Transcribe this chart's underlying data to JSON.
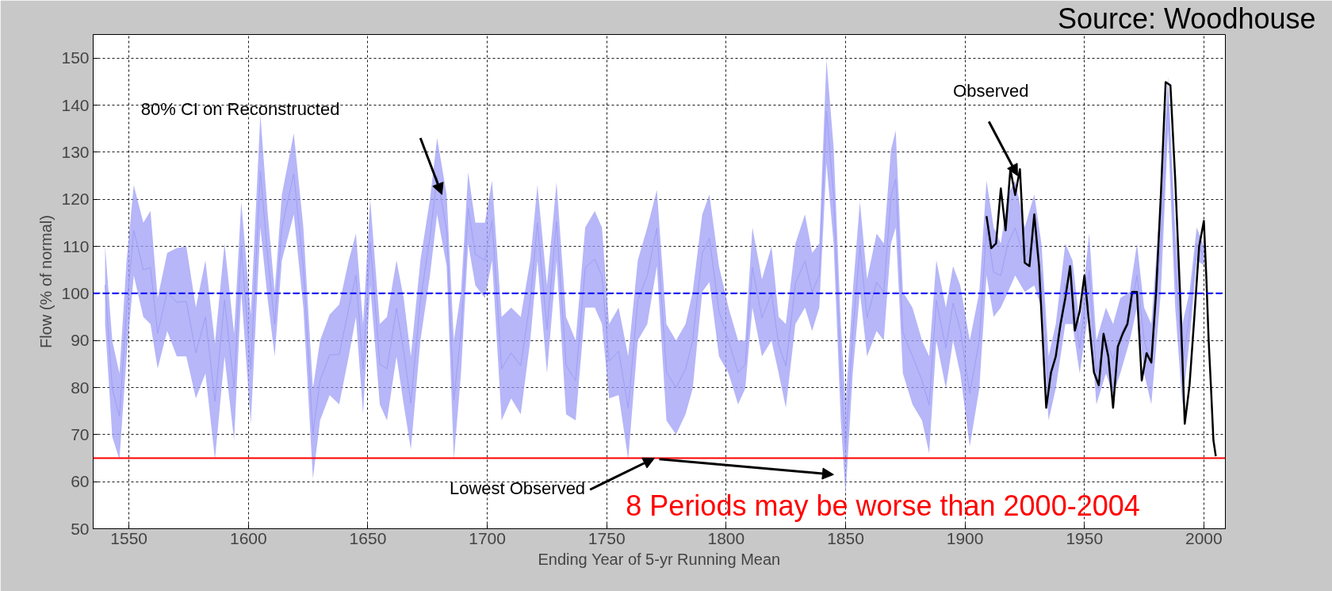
{
  "chart_data": {
    "type": "line",
    "xlabel": "Ending Year of 5-yr Running Mean",
    "ylabel": "Flow (% of normal)",
    "xlim": [
      1535,
      2009
    ],
    "ylim": [
      50,
      155
    ],
    "xticks": [
      1550,
      1600,
      1650,
      1700,
      1750,
      1800,
      1850,
      1900,
      1950,
      2000
    ],
    "yticks": [
      50,
      60,
      70,
      80,
      90,
      100,
      110,
      120,
      130,
      140,
      150
    ],
    "grid": true,
    "series": [
      {
        "color": "#9e9ef6",
        "values": [
          101.75,
          79.75,
          73.85,
          96.8,
          113.4,
          105,
          105.5,
          91.5,
          100.3,
          98.1,
          98.3,
          87.35,
          95,
          77.05,
          98.6,
          80.1,
          109.9,
          83.9,
          126,
          108.25,
          93.45,
          114,
          125.4,
          105.5,
          70.2,
          81.5,
          86.95,
          87,
          96.8,
          103.85,
          83.9,
          110.85,
          84.95,
          84,
          96.8,
          87.7,
          76.7,
          98.5,
          111.9,
          124.9,
          113.4,
          77.35,
          91.65,
          118.15,
          108.35,
          107,
          115.5,
          84,
          87.35,
          84.65,
          98.5,
          115,
          92.35,
          115.3,
          84.65,
          81.5,
          105.5,
          107.25,
          103.75,
          85.6,
          87.7,
          75.65,
          98.5,
          103.75,
          113.9,
          83.25,
          80,
          83.9,
          90.05,
          108.55,
          111.7,
          96.2,
          90,
          83.2,
          84.9,
          105.5,
          94.8,
          100,
          89,
          84.6,
          102.05,
          106.9,
          100.3,
          103.8,
          138.7,
          120.8,
          83.25,
          66.8,
          91.65,
          109.9,
          94.8,
          102.35,
          100.3,
          120.55,
          124.3,
          91.65,
          86.7,
          81.5,
          76.3,
          98.5,
          88.4,
          97.9,
          92.35,
          78.75,
          90.05,
          113.9,
          104.5,
          103.8,
          110.65,
          113.9,
          107.15,
          111.35,
          103.8,
          79.8,
          86.65,
          102.05,
          100.25,
          88.25,
          104.85,
          83.2,
          90,
          85.95,
          91,
          95.15,
          103.8,
          90,
          84.95,
          110.65,
          140.3,
          105.5,
          84.95,
          95.15,
          110.5,
          108
        ],
        "x": [
          1540,
          1543,
          1546,
          1549,
          1552,
          1556,
          1559,
          1562,
          1566,
          1570,
          1574,
          1578,
          1582,
          1586,
          1590,
          1594,
          1597,
          1601,
          1605,
          1608,
          1611,
          1614,
          1619,
          1623,
          1627,
          1630,
          1634,
          1638,
          1642,
          1645,
          1648,
          1651,
          1655,
          1658,
          1662,
          1665,
          1668,
          1672,
          1676,
          1679,
          1683,
          1686,
          1689,
          1692,
          1695,
          1699,
          1702,
          1706,
          1710,
          1714,
          1718,
          1721,
          1725,
          1729,
          1733,
          1737,
          1741,
          1745,
          1748,
          1751,
          1755,
          1759,
          1763,
          1767,
          1771,
          1775,
          1779,
          1783,
          1786,
          1790,
          1793,
          1797,
          1801,
          1805,
          1808,
          1811,
          1815,
          1819,
          1822,
          1825,
          1829,
          1833,
          1836,
          1839,
          1842,
          1845,
          1848,
          1850,
          1853,
          1856,
          1859,
          1863,
          1866,
          1869,
          1871,
          1874,
          1878,
          1882,
          1885,
          1888,
          1892,
          1895,
          1898,
          1902,
          1906,
          1909,
          1912,
          1915,
          1918,
          1921,
          1925,
          1929,
          1932,
          1935,
          1938,
          1942,
          1945,
          1948,
          1952,
          1955,
          1959,
          1962,
          1965,
          1969,
          1972,
          1975,
          1978,
          1982,
          1985,
          1988,
          1991,
          1994,
          1997,
          2000
        ],
        "upper": [
          110,
          90,
          83,
          107,
          123,
          115,
          117.5,
          99,
          108.6,
          109.6,
          110,
          97,
          107,
          89.4,
          110.6,
          91.4,
          119.5,
          95.5,
          138,
          117.5,
          100.3,
          121,
          134,
          114,
          79.8,
          90,
          95.5,
          97.6,
          107,
          112.7,
          93.5,
          120,
          93.5,
          95,
          107,
          99,
          86.6,
          107,
          120,
          133,
          121,
          90,
          100.3,
          125.7,
          115,
          115,
          124,
          95,
          97,
          95,
          107,
          123,
          101.7,
          123.6,
          95,
          90,
          114,
          117.5,
          114,
          93.5,
          97,
          86.6,
          107,
          114,
          122,
          93.5,
          90,
          93.5,
          100.3,
          116.8,
          121,
          105.8,
          97,
          90,
          90,
          114,
          103,
          110,
          95,
          93.5,
          110.6,
          116.8,
          108.6,
          110.6,
          149.7,
          131,
          93.5,
          76.4,
          100.3,
          119.5,
          103,
          112.7,
          110.6,
          130.5,
          134.6,
          100.3,
          97,
          90,
          86.6,
          107,
          97,
          105.8,
          101.7,
          90,
          100.3,
          124,
          114,
          110.6,
          121,
          124,
          114,
          121,
          110.6,
          86.6,
          93.5,
          110.6,
          107,
          93.5,
          112.7,
          90,
          97,
          93.5,
          99,
          100.3,
          110.6,
          97,
          93.5,
          121,
          146,
          114,
          93.5,
          100.3,
          114,
          110
        ],
        "lower": [
          93.5,
          69.5,
          64.7,
          86.6,
          103.8,
          95,
          93.5,
          84,
          92,
          86.6,
          86.6,
          77.7,
          83,
          64.7,
          86.6,
          68.8,
          100.3,
          72.3,
          114,
          99,
          86.6,
          107,
          116.8,
          97,
          60.6,
          73,
          78.4,
          76.4,
          86.6,
          95,
          74.3,
          101.7,
          76.4,
          73,
          86.6,
          76.4,
          66.8,
          90,
          103.8,
          116.8,
          105.8,
          64.7,
          83,
          110.6,
          101.7,
          99,
          107,
          73,
          77.7,
          74.3,
          90,
          107,
          83,
          107,
          74.3,
          73,
          97,
          97,
          93.5,
          77.7,
          78.4,
          64.7,
          90,
          93.5,
          105.8,
          73,
          70,
          74.3,
          79.8,
          100.3,
          102.4,
          86.6,
          83,
          76.4,
          79.8,
          97,
          86.6,
          90,
          83,
          75.7,
          93.5,
          97,
          92,
          97,
          127.7,
          110.6,
          73,
          57.2,
          83,
          100.3,
          86.6,
          92,
          90,
          110.6,
          114,
          83,
          76.4,
          73,
          66,
          90,
          79.8,
          90,
          83,
          67.5,
          79.8,
          103.8,
          95,
          97,
          100.3,
          103.8,
          100.3,
          101.7,
          97,
          73,
          79.8,
          93.5,
          93.5,
          83,
          97,
          76.4,
          83,
          78.4,
          83,
          90,
          97,
          83,
          76.4,
          100.3,
          134.6,
          97,
          76.4,
          90,
          107,
          106
        ]
      },
      {
        "color": "#000000",
        "x": [
          1909,
          1911,
          1913,
          1915,
          1917,
          1919,
          1921,
          1923,
          1925,
          1927,
          1929,
          1931,
          1934,
          1936,
          1938,
          1940,
          1942,
          1944,
          1946,
          1948,
          1950,
          1952,
          1954,
          1956,
          1958,
          1960,
          1962,
          1964,
          1966,
          1968,
          1970,
          1972,
          1974,
          1976,
          1978,
          1980,
          1982,
          1984,
          1986,
          1988,
          1990,
          1992,
          1994,
          1996,
          1998,
          2000,
          2001,
          2002,
          2003,
          2004,
          2005
        ],
        "values": [
          116.4,
          109.6,
          110.6,
          122.3,
          113.4,
          126.4,
          120.9,
          126.4,
          106.5,
          105.8,
          116.8,
          105.8,
          75.7,
          83.2,
          86.6,
          93.5,
          99,
          105.8,
          92.1,
          96.2,
          103.8,
          93.5,
          83.2,
          80.5,
          91.4,
          86.6,
          75.7,
          88.7,
          91.4,
          93.5,
          100.3,
          100.3,
          81.5,
          87.3,
          85.3,
          100.3,
          120.9,
          144.9,
          144.2,
          124.3,
          100.3,
          72.3,
          80.5,
          94.9,
          109.9,
          115.4,
          103.8,
          90.1,
          79.8,
          68.8,
          65.4
        ]
      }
    ],
    "ref_lines": [
      {
        "axis": "y",
        "value": 100,
        "color": "#0000ff",
        "line_style": "dashed"
      },
      {
        "axis": "y",
        "value": 65,
        "color": "#ff0000",
        "line_style": "solid"
      }
    ],
    "annotations": [
      "80% CI on Reconstructed",
      {
        "text": "Observed",
        "x": 1922,
        "y": 125
      },
      {
        "text": "Lowest Observed",
        "x": 1770,
        "y": 65
      },
      "8 Periods may be worse than 2000-2004",
      "Source: Woodhouse"
    ]
  }
}
